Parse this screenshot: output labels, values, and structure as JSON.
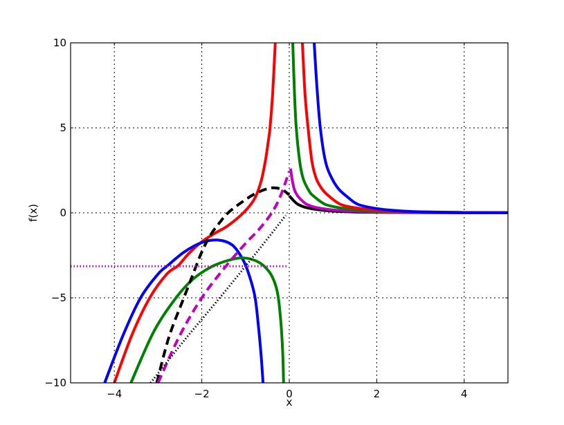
{
  "chart_data": {
    "type": "line",
    "title": "",
    "xlabel": "x",
    "ylabel": "f(x)",
    "xlim": [
      -5,
      5
    ],
    "ylim": [
      -10,
      10
    ],
    "grid": true,
    "legend": null,
    "x_ticks": [
      -4,
      -2,
      0,
      2,
      4
    ],
    "x_tick_labels": [
      "−4",
      "−2",
      "0",
      "2",
      "4"
    ],
    "y_ticks": [
      -10,
      -5,
      0,
      5,
      10
    ],
    "y_tick_labels": [
      "−10",
      "−5",
      "0",
      "5",
      "10"
    ],
    "series": [
      {
        "name": "black-solid-right",
        "color": "#000000",
        "style": "solid",
        "width": 4,
        "points": [
          [
            0.0,
            1.0
          ],
          [
            0.1,
            0.72
          ],
          [
            0.2,
            0.5
          ],
          [
            0.4,
            0.3
          ],
          [
            0.7,
            0.17
          ],
          [
            1.0,
            0.1
          ],
          [
            1.5,
            0.05
          ],
          [
            2.0,
            0.03
          ],
          [
            3.0,
            0.01
          ],
          [
            4.0,
            0.0
          ],
          [
            5.0,
            0.0
          ]
        ]
      },
      {
        "name": "magenta-solid-right",
        "color": "#bf00bf",
        "style": "solid",
        "width": 4,
        "points": [
          [
            0.03,
            2.6
          ],
          [
            0.07,
            1.9
          ],
          [
            0.12,
            1.35
          ],
          [
            0.19,
            1.0
          ],
          [
            0.3,
            0.7
          ],
          [
            0.4,
            0.5
          ],
          [
            0.6,
            0.32
          ],
          [
            0.9,
            0.2
          ],
          [
            1.3,
            0.12
          ],
          [
            2.0,
            0.05
          ],
          [
            3.0,
            0.02
          ],
          [
            4.0,
            0.01
          ],
          [
            5.0,
            0.0
          ]
        ]
      },
      {
        "name": "green-solid-right",
        "color": "#008000",
        "style": "solid",
        "width": 4,
        "points": [
          [
            0.08,
            10
          ],
          [
            0.12,
            7
          ],
          [
            0.16,
            5
          ],
          [
            0.24,
            3
          ],
          [
            0.32,
            2
          ],
          [
            0.45,
            1.3
          ],
          [
            0.55,
            1.0
          ],
          [
            0.82,
            0.5
          ],
          [
            1.2,
            0.28
          ],
          [
            1.6,
            0.17
          ],
          [
            2.0,
            0.1
          ],
          [
            3.0,
            0.04
          ],
          [
            4.0,
            0.02
          ],
          [
            5.0,
            0.01
          ]
        ]
      },
      {
        "name": "red-solid-right",
        "color": "#ff0000",
        "style": "solid",
        "width": 4,
        "points": [
          [
            0.3,
            10
          ],
          [
            0.36,
            7
          ],
          [
            0.43,
            5
          ],
          [
            0.52,
            3
          ],
          [
            0.62,
            2
          ],
          [
            0.75,
            1.4
          ],
          [
            0.9,
            1.0
          ],
          [
            1.17,
            0.5
          ],
          [
            1.5,
            0.3
          ],
          [
            2.0,
            0.16
          ],
          [
            2.5,
            0.08
          ],
          [
            3.0,
            0.05
          ],
          [
            4.0,
            0.02
          ],
          [
            5.0,
            0.01
          ]
        ]
      },
      {
        "name": "blue-solid-right",
        "color": "#0000ff",
        "style": "solid",
        "width": 4,
        "points": [
          [
            0.57,
            10
          ],
          [
            0.63,
            7.5
          ],
          [
            0.71,
            5
          ],
          [
            0.83,
            3
          ],
          [
            0.98,
            2
          ],
          [
            1.13,
            1.4
          ],
          [
            1.3,
            1.0
          ],
          [
            1.57,
            0.5
          ],
          [
            2.0,
            0.25
          ],
          [
            2.5,
            0.12
          ],
          [
            3.0,
            0.06
          ],
          [
            4.0,
            0.02
          ],
          [
            5.0,
            0.01
          ]
        ]
      },
      {
        "name": "red-solid-left",
        "color": "#ff0000",
        "style": "solid",
        "width": 4,
        "points": [
          [
            -4.0,
            -10
          ],
          [
            -3.6,
            -7.2
          ],
          [
            -3.19,
            -5
          ],
          [
            -2.8,
            -3.6
          ],
          [
            -2.54,
            -3.1
          ],
          [
            -2.3,
            -2.4
          ],
          [
            -2.0,
            -1.7
          ],
          [
            -1.7,
            -1.2
          ],
          [
            -1.4,
            -0.75
          ],
          [
            -1.05,
            0.0
          ],
          [
            -0.8,
            0.8
          ],
          [
            -0.65,
            1.8
          ],
          [
            -0.55,
            3.0
          ],
          [
            -0.48,
            4.2
          ],
          [
            -0.44,
            5.0
          ],
          [
            -0.38,
            7.0
          ],
          [
            -0.32,
            10
          ]
        ]
      },
      {
        "name": "blue-solid-left",
        "color": "#0000ff",
        "style": "solid",
        "width": 4,
        "points": [
          [
            -4.22,
            -10
          ],
          [
            -3.8,
            -7.2
          ],
          [
            -3.4,
            -5
          ],
          [
            -3.0,
            -3.6
          ],
          [
            -2.78,
            -3.1
          ],
          [
            -2.4,
            -2.3
          ],
          [
            -2.0,
            -1.75
          ],
          [
            -1.63,
            -1.6
          ],
          [
            -1.3,
            -1.9
          ],
          [
            -1.05,
            -2.8
          ],
          [
            -0.9,
            -3.8
          ],
          [
            -0.78,
            -5.0
          ],
          [
            -0.7,
            -6.8
          ],
          [
            -0.64,
            -8.5
          ],
          [
            -0.6,
            -10
          ]
        ]
      },
      {
        "name": "green-solid-left",
        "color": "#008000",
        "style": "solid",
        "width": 4,
        "points": [
          [
            -3.62,
            -10
          ],
          [
            -3.1,
            -7.0
          ],
          [
            -2.59,
            -5
          ],
          [
            -2.2,
            -3.9
          ],
          [
            -1.8,
            -3.2
          ],
          [
            -1.4,
            -2.8
          ],
          [
            -1.05,
            -2.65
          ],
          [
            -0.7,
            -2.9
          ],
          [
            -0.45,
            -3.5
          ],
          [
            -0.32,
            -4.2
          ],
          [
            -0.25,
            -5.0
          ],
          [
            -0.19,
            -6.5
          ],
          [
            -0.15,
            -8.2
          ],
          [
            -0.13,
            -10
          ]
        ]
      },
      {
        "name": "black-dashed",
        "color": "#000000",
        "style": "dashed",
        "width": 4,
        "points": [
          [
            -3.03,
            -10
          ],
          [
            -2.75,
            -7.3
          ],
          [
            -2.41,
            -5
          ],
          [
            -2.2,
            -3.6
          ],
          [
            -2.0,
            -2.3
          ],
          [
            -1.8,
            -1.3
          ],
          [
            -1.6,
            -0.6
          ],
          [
            -1.4,
            0.0
          ],
          [
            -1.1,
            0.6
          ],
          [
            -0.8,
            1.1
          ],
          [
            -0.5,
            1.42
          ],
          [
            -0.32,
            1.47
          ],
          [
            -0.15,
            1.35
          ],
          [
            0.0,
            1.05
          ]
        ]
      },
      {
        "name": "magenta-dashed",
        "color": "#bf00bf",
        "style": "dashed",
        "width": 4,
        "points": [
          [
            -3.0,
            -10
          ],
          [
            -2.5,
            -7.2
          ],
          [
            -2.0,
            -5.0
          ],
          [
            -1.5,
            -3.3
          ],
          [
            -1.0,
            -1.8
          ],
          [
            -0.7,
            -1.0
          ],
          [
            -0.4,
            0.0
          ],
          [
            -0.2,
            1.0
          ],
          [
            0.0,
            2.45
          ]
        ]
      },
      {
        "name": "black-dotted",
        "color": "#000000",
        "style": "dotted",
        "width": 2.5,
        "points": [
          [
            -3.17,
            -10
          ],
          [
            -2.4,
            -7.5
          ],
          [
            -1.59,
            -5
          ],
          [
            -0.8,
            -2.5
          ],
          [
            -0.08,
            -0.15
          ]
        ]
      },
      {
        "name": "magenta-dotted-horizontal",
        "color": "#bf00bf",
        "style": "dotted",
        "width": 3,
        "points": [
          [
            -5.0,
            -3.14
          ],
          [
            -0.05,
            -3.14
          ]
        ]
      }
    ]
  },
  "axes": {
    "xlabel": "x",
    "ylabel": "f(x)"
  }
}
